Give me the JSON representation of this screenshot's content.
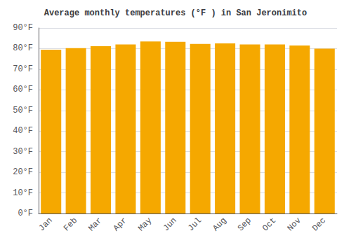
{
  "chart_data": {
    "type": "bar",
    "title": "Average monthly temperatures (°F ) in San Jeronimito",
    "categories": [
      "Jan",
      "Feb",
      "Mar",
      "Apr",
      "May",
      "Jun",
      "Jul",
      "Aug",
      "Sep",
      "Oct",
      "Nov",
      "Dec"
    ],
    "values": [
      79.5,
      80.2,
      81.2,
      82.0,
      83.5,
      83.3,
      82.3,
      82.5,
      82.0,
      82.0,
      81.5,
      80.0
    ],
    "color": "#F5A800",
    "ylim": [
      0,
      90
    ],
    "yticks": [
      {
        "value": 0,
        "label": "0°F"
      },
      {
        "value": 10,
        "label": "10°F"
      },
      {
        "value": 20,
        "label": "20°F"
      },
      {
        "value": 30,
        "label": "30°F"
      },
      {
        "value": 40,
        "label": "40°F"
      },
      {
        "value": 50,
        "label": "50°F"
      },
      {
        "value": 60,
        "label": "60°F"
      },
      {
        "value": 70,
        "label": "70°F"
      },
      {
        "value": 80,
        "label": "80°F"
      },
      {
        "value": 90,
        "label": "90°F"
      }
    ],
    "grid": true
  }
}
